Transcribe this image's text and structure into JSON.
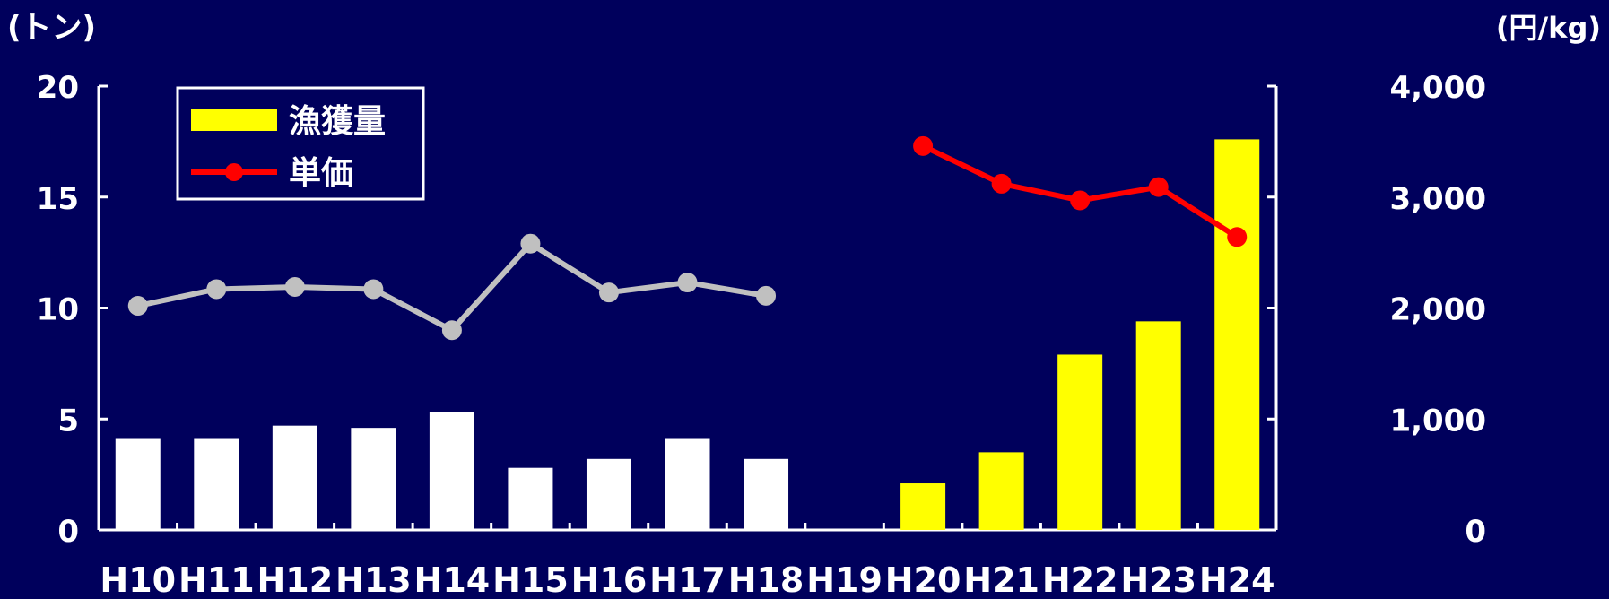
{
  "chart_data": {
    "type": "bar",
    "title": "",
    "categories": [
      "H10",
      "H11",
      "H12",
      "H13",
      "H14",
      "H15",
      "H16",
      "H17",
      "H18",
      "H19",
      "H20",
      "H21",
      "H22",
      "H23",
      "H24"
    ],
    "y_left": {
      "label": "(トン)",
      "ylim": [
        0,
        20
      ],
      "ticks": [
        "0",
        "5",
        "10",
        "15",
        "20"
      ]
    },
    "y_right": {
      "label": "(円/kg)",
      "ylim": [
        0,
        4000
      ],
      "ticks": [
        "0",
        "1,000",
        "2,000",
        "3,000",
        "4,000"
      ]
    },
    "series": [
      {
        "name": "漁獲量",
        "kind": "bar",
        "axis": "left",
        "color": "#ffff00",
        "early_color": "#ffffff",
        "values": [
          4.1,
          4.1,
          4.7,
          4.6,
          5.3,
          2.8,
          3.2,
          4.1,
          3.2,
          null,
          2.1,
          3.5,
          7.9,
          9.4,
          17.6
        ]
      },
      {
        "name": "単価",
        "kind": "line",
        "axis": "right",
        "color": "#ff0000",
        "early_color": "#c0c0c0",
        "values": [
          2020,
          2170,
          2190,
          2170,
          1800,
          2580,
          2140,
          2230,
          2110,
          null,
          3460,
          3120,
          2970,
          3090,
          2640
        ]
      }
    ],
    "early_segment_end": "H18",
    "legend": {
      "position": "top-left",
      "items": [
        {
          "label": "漁獲量",
          "swatch": "bar",
          "color": "#ffff00"
        },
        {
          "label": "単価",
          "swatch": "line",
          "color": "#ff0000"
        }
      ]
    },
    "grid": false
  },
  "colors": {
    "background": "#00005c",
    "axis": "#ffffff",
    "text": "#ffffff"
  }
}
